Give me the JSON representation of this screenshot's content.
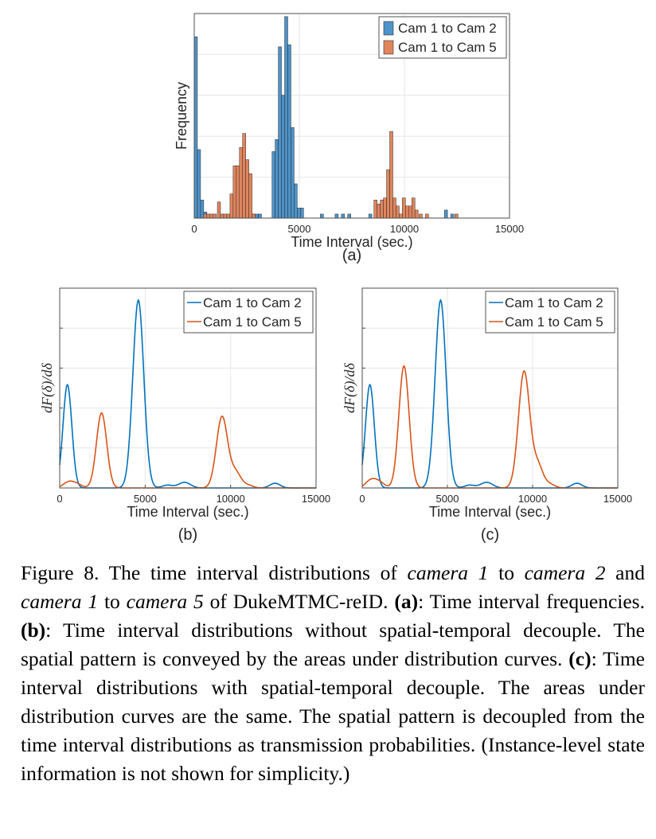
{
  "colors": {
    "blue": "#0072BD",
    "orange": "#D95319",
    "bar_blue": "#4E93C9",
    "bar_orange": "#E0855C"
  },
  "chart_data": [
    {
      "panel": "(a)",
      "type": "bar",
      "title": "",
      "xlabel": "Time Interval (sec.)",
      "ylabel": "Frequency",
      "xlim": [
        0,
        15000
      ],
      "ylim": [
        0,
        1.0
      ],
      "xticks": [
        "0",
        "5000",
        "10000",
        "15000"
      ],
      "bin_width": 150,
      "legend": [
        "Cam 1 to Cam 2",
        "Cam 1 to Cam 5"
      ],
      "legend_position": "top-right",
      "series": [
        {
          "name": "Cam 1 to Cam 2",
          "bins": [
            {
              "x": 0,
              "y": 0.9
            },
            {
              "x": 150,
              "y": 0.34
            },
            {
              "x": 300,
              "y": 0.09
            },
            {
              "x": 450,
              "y": 0.03
            },
            {
              "x": 2600,
              "y": 0.02
            },
            {
              "x": 2750,
              "y": 0.02
            },
            {
              "x": 2900,
              "y": 0.02
            },
            {
              "x": 3050,
              "y": 0.02
            },
            {
              "x": 3700,
              "y": 0.33
            },
            {
              "x": 3850,
              "y": 0.39
            },
            {
              "x": 4000,
              "y": 0.85
            },
            {
              "x": 4150,
              "y": 0.61
            },
            {
              "x": 4300,
              "y": 1.0
            },
            {
              "x": 4450,
              "y": 0.86
            },
            {
              "x": 4600,
              "y": 0.45
            },
            {
              "x": 4750,
              "y": 0.17
            },
            {
              "x": 4900,
              "y": 0.05
            },
            {
              "x": 5050,
              "y": 0.05
            },
            {
              "x": 6000,
              "y": 0.02
            },
            {
              "x": 6700,
              "y": 0.02
            },
            {
              "x": 7000,
              "y": 0.02
            },
            {
              "x": 7300,
              "y": 0.02
            },
            {
              "x": 8300,
              "y": 0.02
            },
            {
              "x": 11900,
              "y": 0.04
            },
            {
              "x": 12200,
              "y": 0.02
            }
          ]
        },
        {
          "name": "Cam 1 to Cam 5",
          "bins": [
            {
              "x": 450,
              "y": 0.02
            },
            {
              "x": 600,
              "y": 0.02
            },
            {
              "x": 750,
              "y": 0.02
            },
            {
              "x": 900,
              "y": 0.02
            },
            {
              "x": 1100,
              "y": 0.08
            },
            {
              "x": 1250,
              "y": 0.02
            },
            {
              "x": 1400,
              "y": 0.02
            },
            {
              "x": 1550,
              "y": 0.02
            },
            {
              "x": 1700,
              "y": 0.12
            },
            {
              "x": 1850,
              "y": 0.26
            },
            {
              "x": 2000,
              "y": 0.26
            },
            {
              "x": 2150,
              "y": 0.35
            },
            {
              "x": 2300,
              "y": 0.42
            },
            {
              "x": 2450,
              "y": 0.29
            },
            {
              "x": 2600,
              "y": 0.22
            },
            {
              "x": 2750,
              "y": 0.02
            },
            {
              "x": 8550,
              "y": 0.09
            },
            {
              "x": 8700,
              "y": 0.07
            },
            {
              "x": 8850,
              "y": 0.09
            },
            {
              "x": 9000,
              "y": 0.1
            },
            {
              "x": 9150,
              "y": 0.24
            },
            {
              "x": 9300,
              "y": 0.43
            },
            {
              "x": 9450,
              "y": 0.1
            },
            {
              "x": 9600,
              "y": 0.06
            },
            {
              "x": 9750,
              "y": 0.02
            },
            {
              "x": 9900,
              "y": 0.1
            },
            {
              "x": 10050,
              "y": 0.06
            },
            {
              "x": 10200,
              "y": 0.06
            },
            {
              "x": 10350,
              "y": 0.1
            },
            {
              "x": 10500,
              "y": 0.04
            },
            {
              "x": 10700,
              "y": 0.02
            },
            {
              "x": 11000,
              "y": 0.02
            },
            {
              "x": 12400,
              "y": 0.02
            }
          ]
        }
      ]
    },
    {
      "panel": "(b)",
      "type": "line",
      "xlabel": "Time Interval (sec.)",
      "ylabel": "dF(δ)/dδ",
      "xlim": [
        0,
        15000
      ],
      "ylim": [
        0,
        1.0
      ],
      "xticks": [
        "0",
        "5000",
        "10000",
        "15000"
      ],
      "legend": [
        "Cam 1 to Cam 2",
        "Cam 1 to Cam 5"
      ],
      "legend_position": "top-right",
      "series": [
        {
          "name": "Cam 1 to Cam 2",
          "peaks": [
            {
              "center": 450,
              "height": 0.55,
              "width": 260
            },
            {
              "center": 4600,
              "height": 1.0,
              "width": 320
            },
            {
              "center": 6300,
              "height": 0.015,
              "width": 300
            },
            {
              "center": 7300,
              "height": 0.03,
              "width": 350
            },
            {
              "center": 12600,
              "height": 0.025,
              "width": 300
            }
          ]
        },
        {
          "name": "Cam 1 to Cam 5",
          "peaks": [
            {
              "center": 500,
              "height": 0.03,
              "width": 300
            },
            {
              "center": 1000,
              "height": 0.02,
              "width": 300
            },
            {
              "center": 2450,
              "height": 0.4,
              "width": 300
            },
            {
              "center": 9500,
              "height": 0.38,
              "width": 330
            },
            {
              "center": 10300,
              "height": 0.08,
              "width": 300
            },
            {
              "center": 11000,
              "height": 0.015,
              "width": 300
            }
          ]
        }
      ]
    },
    {
      "panel": "(c)",
      "type": "line",
      "xlabel": "Time Interval (sec.)",
      "ylabel": "dF(δ)/dδ",
      "xlim": [
        0,
        15000
      ],
      "ylim": [
        0,
        1.0
      ],
      "xticks": [
        "0",
        "5000",
        "10000",
        "15000"
      ],
      "legend": [
        "Cam 1 to Cam 2",
        "Cam 1 to Cam 5"
      ],
      "legend_position": "top-right",
      "series": [
        {
          "name": "Cam 1 to Cam 2",
          "peaks": [
            {
              "center": 450,
              "height": 0.55,
              "width": 260
            },
            {
              "center": 4600,
              "height": 1.0,
              "width": 320
            },
            {
              "center": 6300,
              "height": 0.015,
              "width": 300
            },
            {
              "center": 7300,
              "height": 0.03,
              "width": 350
            },
            {
              "center": 12600,
              "height": 0.025,
              "width": 300
            }
          ]
        },
        {
          "name": "Cam 1 to Cam 5",
          "peaks": [
            {
              "center": 500,
              "height": 0.04,
              "width": 300
            },
            {
              "center": 1000,
              "height": 0.03,
              "width": 300
            },
            {
              "center": 2450,
              "height": 0.65,
              "width": 300
            },
            {
              "center": 9500,
              "height": 0.62,
              "width": 330
            },
            {
              "center": 10300,
              "height": 0.12,
              "width": 300
            },
            {
              "center": 11000,
              "height": 0.02,
              "width": 300
            }
          ]
        }
      ]
    }
  ],
  "caption": {
    "p1": "Figure 8. The time interval distributions of ",
    "i1": "camera 1",
    "p2": " to ",
    "i2": "camera 2",
    "p3": " and ",
    "i3": "camera 1",
    "p4": " to ",
    "i4": "camera 5",
    "p5": " of DukeMTMC-reID. ",
    "b1": "(a)",
    "p6": ": Time interval frequencies. ",
    "b2": "(b)",
    "p7": ": Time interval distributions without spatial-temporal decouple. The spatial pattern is conveyed by the areas under distribution curves. ",
    "b3": "(c)",
    "p8": ": Time interval distributions with spatial-temporal decouple. The areas under distribution curves are the same. The spatial pattern is decoupled from the time interval distributions as transmission probabilities. (Instance-level state information is not shown for simplicity.)"
  }
}
